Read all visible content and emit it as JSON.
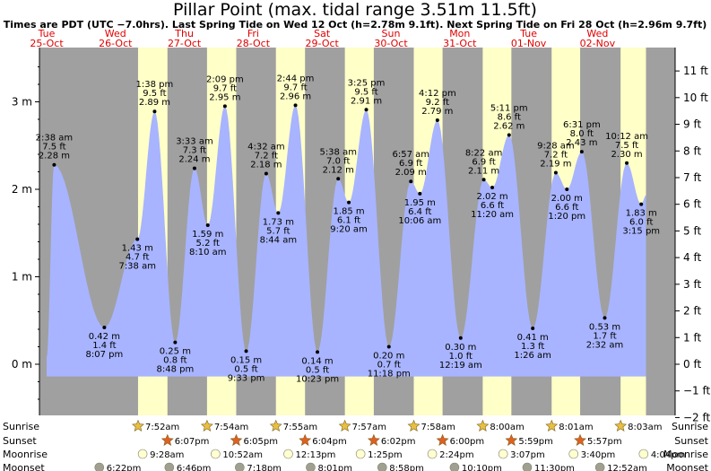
{
  "title": "Pillar Point (max. tidal range 3.51m 11.5ft)",
  "subtitle": "Times are PDT (UTC −7.0hrs). Last Spring Tide on Wed 12 Oct (h=2.78m 9.1ft). Next Spring Tide on Fri 28 Oct (h=2.96m 9.7ft)",
  "days": [
    {
      "dow": "Tue",
      "date": "25-Oct"
    },
    {
      "dow": "Wed",
      "date": "26-Oct"
    },
    {
      "dow": "Thu",
      "date": "27-Oct"
    },
    {
      "dow": "Fri",
      "date": "28-Oct"
    },
    {
      "dow": "Sat",
      "date": "29-Oct"
    },
    {
      "dow": "Sun",
      "date": "30-Oct"
    },
    {
      "dow": "Mon",
      "date": "31-Oct"
    },
    {
      "dow": "Tue",
      "date": "01-Nov"
    },
    {
      "dow": "Wed",
      "date": "02-Nov"
    }
  ],
  "chart_data": {
    "type": "area",
    "title": "Pillar Point (max. tidal range 3.51m 11.5ft)",
    "x_unit": "hours from 00:00 on Tue 25-Oct (PDT)",
    "ylim_m": [
      -0.5,
      3.6
    ],
    "yticks_m": [
      "3 m",
      "2 m",
      "1 m",
      "0 m"
    ],
    "yticks_m_values": [
      3,
      2,
      1,
      0
    ],
    "yticks_ft": [
      "11 ft",
      "10 ft",
      "9 ft",
      "8 ft",
      "7 ft",
      "6 ft",
      "5 ft",
      "4 ft",
      "3 ft",
      "2 ft",
      "1 ft",
      "0 ft",
      "−1 ft",
      "−2 ft"
    ],
    "yticks_ft_values": [
      11,
      10,
      9,
      8,
      7,
      6,
      5,
      4,
      3,
      2,
      1,
      0,
      -1,
      -2
    ],
    "extremes": [
      {
        "time": "2:38 am",
        "m": "2.28 m",
        "ft": "7.5 ft",
        "h": 2.28,
        "hi": true
      },
      {
        "time": "8:07 pm",
        "m": "0.42 m",
        "ft": "1.4 ft",
        "h": 0.42,
        "hi": false
      },
      {
        "time": "7:38 am",
        "m": "1.43 m",
        "ft": "4.7 ft",
        "h": 1.43,
        "hi": false
      },
      {
        "time": "1:38 pm",
        "m": "2.89 m",
        "ft": "9.5 ft",
        "h": 2.89,
        "hi": true
      },
      {
        "time": "8:48 pm",
        "m": "0.25 m",
        "ft": "0.8 ft",
        "h": 0.25,
        "hi": false
      },
      {
        "time": "3:33 am",
        "m": "2.24 m",
        "ft": "7.3 ft",
        "h": 2.24,
        "hi": true
      },
      {
        "time": "8:10 am",
        "m": "1.59 m",
        "ft": "5.2 ft",
        "h": 1.59,
        "hi": false
      },
      {
        "time": "2:09 pm",
        "m": "2.95 m",
        "ft": "9.7 ft",
        "h": 2.95,
        "hi": true
      },
      {
        "time": "9:33 pm",
        "m": "0.15 m",
        "ft": "0.5 ft",
        "h": 0.15,
        "hi": false
      },
      {
        "time": "4:32 am",
        "m": "2.18 m",
        "ft": "7.2 ft",
        "h": 2.18,
        "hi": true
      },
      {
        "time": "8:44 am",
        "m": "1.73 m",
        "ft": "5.7 ft",
        "h": 1.73,
        "hi": false
      },
      {
        "time": "2:44 pm",
        "m": "2.96 m",
        "ft": "9.7 ft",
        "h": 2.96,
        "hi": true
      },
      {
        "time": "10:23 pm",
        "m": "0.14 m",
        "ft": "0.5 ft",
        "h": 0.14,
        "hi": false
      },
      {
        "time": "5:38 am",
        "m": "2.12 m",
        "ft": "7.0 ft",
        "h": 2.12,
        "hi": true
      },
      {
        "time": "9:20 am",
        "m": "1.85 m",
        "ft": "6.1 ft",
        "h": 1.85,
        "hi": false
      },
      {
        "time": "3:25 pm",
        "m": "2.91 m",
        "ft": "9.5 ft",
        "h": 2.91,
        "hi": true
      },
      {
        "time": "11:18 pm",
        "m": "0.20 m",
        "ft": "0.7 ft",
        "h": 0.2,
        "hi": false
      },
      {
        "time": "6:57 am",
        "m": "2.09 m",
        "ft": "6.9 ft",
        "h": 2.09,
        "hi": true
      },
      {
        "time": "10:06 am",
        "m": "1.95 m",
        "ft": "6.4 ft",
        "h": 1.95,
        "hi": false
      },
      {
        "time": "4:12 pm",
        "m": "2.79 m",
        "ft": "9.2 ft",
        "h": 2.79,
        "hi": true
      },
      {
        "time": "12:19 am",
        "m": "0.30 m",
        "ft": "1.0 ft",
        "h": 0.3,
        "hi": false
      },
      {
        "time": "8:22 am",
        "m": "2.11 m",
        "ft": "6.9 ft",
        "h": 2.11,
        "hi": true
      },
      {
        "time": "11:20 am",
        "m": "2.02 m",
        "ft": "6.6 ft",
        "h": 2.02,
        "hi": false
      },
      {
        "time": "5:11 pm",
        "m": "2.62 m",
        "ft": "8.6 ft",
        "h": 2.62,
        "hi": true
      },
      {
        "time": "1:26 am",
        "m": "0.41 m",
        "ft": "1.3 ft",
        "h": 0.41,
        "hi": false
      },
      {
        "time": "9:28 am",
        "m": "2.19 m",
        "ft": "7.2 ft",
        "h": 2.19,
        "hi": true
      },
      {
        "time": "1:20 pm",
        "m": "2.00 m",
        "ft": "6.6 ft",
        "h": 2.0,
        "hi": false
      },
      {
        "time": "6:31 pm",
        "m": "2.43 m",
        "ft": "8.0 ft",
        "h": 2.43,
        "hi": true
      },
      {
        "time": "2:32 am",
        "m": "0.53 m",
        "ft": "1.7 ft",
        "h": 0.53,
        "hi": false
      },
      {
        "time": "10:12 am",
        "m": "2.30 m",
        "ft": "7.5 ft",
        "h": 2.3,
        "hi": true
      },
      {
        "time": "3:15 pm",
        "m": "1.83 m",
        "ft": "6.0 ft",
        "h": 1.83,
        "hi": false
      }
    ],
    "extreme_hours": [
      2.633,
      20.117,
      31.633,
      37.633,
      44.8,
      51.55,
      56.167,
      62.15,
      69.55,
      76.533,
      80.733,
      86.733,
      94.383,
      101.633,
      105.333,
      111.417,
      119.3,
      126.95,
      130.1,
      136.2,
      144.317,
      152.367,
      155.333,
      161.183,
      169.433,
      177.467,
      181.333,
      186.517,
      194.533,
      202.2,
      207.25
    ],
    "curve_range_hours": [
      0,
      208.9
    ],
    "curve_range_m": [
      0.08,
      1.93
    ],
    "daylight_hours": [
      [
        31.867,
        42.117
      ],
      [
        55.9,
        66.083
      ],
      [
        79.917,
        90.067
      ],
      [
        103.95,
        114.033
      ],
      [
        127.967,
        138.0
      ],
      [
        152.0,
        161.983
      ],
      [
        176.017,
        185.95
      ],
      [
        200.05,
        208.9
      ]
    ]
  },
  "rows": {
    "labels": [
      "Sunrise",
      "Sunset",
      "Moonrise",
      "Moonset"
    ],
    "sunrise": [
      "7:52am",
      "7:54am",
      "7:55am",
      "7:57am",
      "7:58am",
      "8:00am",
      "8:01am",
      "8:03am"
    ],
    "sunrise_hours": [
      31.867,
      55.9,
      79.917,
      103.95,
      127.967,
      152.0,
      176.017,
      200.05
    ],
    "sunset": [
      "6:07pm",
      "6:05pm",
      "6:04pm",
      "6:02pm",
      "6:00pm",
      "5:59pm",
      "5:57pm"
    ],
    "sunset_hours": [
      42.117,
      66.083,
      90.067,
      114.033,
      138.0,
      161.983,
      185.95
    ],
    "moonrise": [
      "9:28am",
      "10:52am",
      "12:13pm",
      "1:25pm",
      "2:24pm",
      "3:07pm",
      "3:40pm",
      "4:04pm"
    ],
    "moonrise_hours": [
      33.467,
      58.867,
      84.217,
      109.417,
      134.4,
      159.117,
      183.667,
      208.067
    ],
    "moonset": [
      "6:22pm",
      "6:46pm",
      "7:18pm",
      "8:01pm",
      "8:58pm",
      "10:10pm",
      "11:30pm",
      "12:52am"
    ],
    "moonset_hours": [
      18.367,
      42.767,
      67.3,
      92.017,
      116.967,
      142.167,
      167.5,
      192.867
    ]
  },
  "colors": {
    "night": "#a0a0a0",
    "day": "#ffffc8",
    "water": "#a8b4ff",
    "label_red": "#e00000",
    "sun_fill": "#e8c040",
    "sunset_fill": "#e06020",
    "moonrise_fill": "#ffffd0",
    "moonset_fill": "#a0a090"
  }
}
